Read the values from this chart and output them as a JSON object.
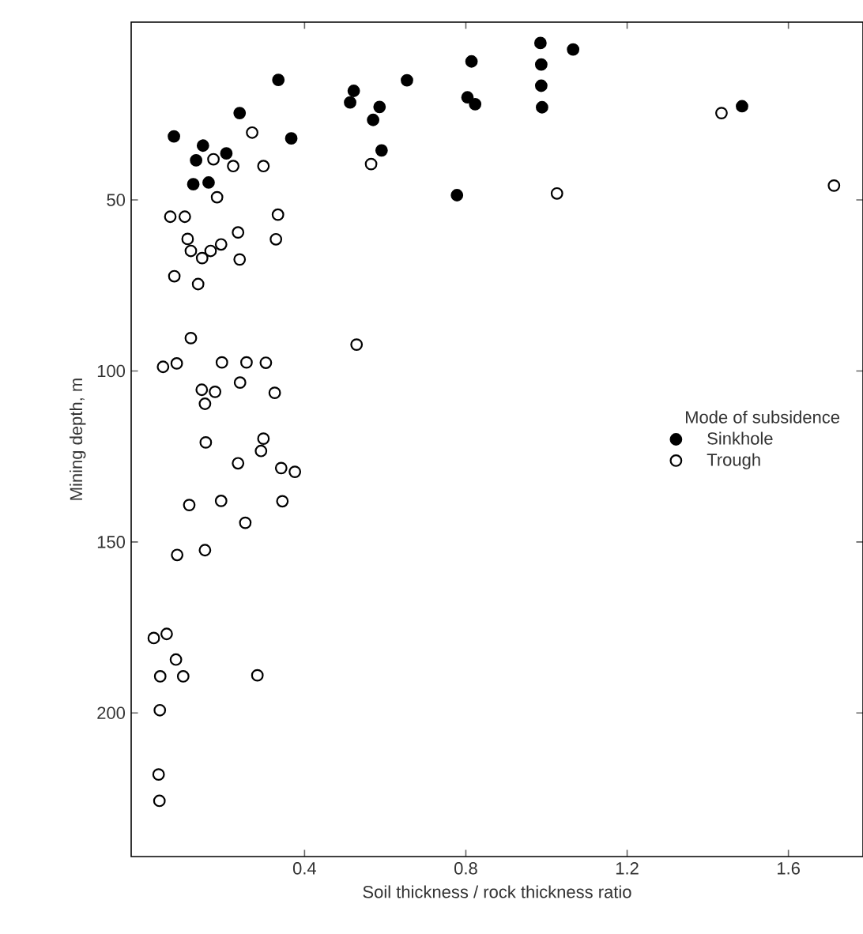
{
  "chart_data": {
    "type": "scatter",
    "xlabel": "Soil thickness / rock thickness ratio",
    "ylabel": "Mining depth, m",
    "legend_title": "Mode of subsidence",
    "xlim": [
      -0.03,
      1.785
    ],
    "ylim": [
      242,
      -2
    ],
    "xticks": [
      0.4,
      0.8,
      1.2,
      1.6
    ],
    "yticks": [
      50,
      100,
      150,
      200
    ],
    "legend": "right",
    "marker": "circle",
    "series": [
      {
        "name": "Sinkhole",
        "color": "#000000",
        "x": [
          0.335,
          0.239,
          0.076,
          0.148,
          0.206,
          0.131,
          0.367,
          0.124,
          0.162,
          0.522,
          0.513,
          0.586,
          0.57,
          0.654,
          0.591,
          0.814,
          0.804,
          0.823,
          0.778,
          0.985,
          1.066,
          0.987,
          0.987,
          0.989,
          1.485
        ],
        "values": [
          14.9,
          24.6,
          31.4,
          34.1,
          36.4,
          38.4,
          32,
          45.4,
          44.9,
          18.1,
          21.5,
          22.8,
          26.6,
          15,
          35.5,
          9.5,
          20,
          22,
          48.6,
          4.1,
          6,
          10.4,
          16.6,
          22.9,
          22.6
        ]
      },
      {
        "name": "Trough",
        "color": "#ffffff",
        "x": [
          0.27,
          0.174,
          0.223,
          0.298,
          0.565,
          0.183,
          0.067,
          0.103,
          0.334,
          0.11,
          0.235,
          0.329,
          0.118,
          0.193,
          0.167,
          0.146,
          0.239,
          0.077,
          0.136,
          1.434,
          1.026,
          1.713,
          0.118,
          0.529,
          0.049,
          0.083,
          0.195,
          0.256,
          0.304,
          0.145,
          0.178,
          0.24,
          0.153,
          0.326,
          0.155,
          0.298,
          0.292,
          0.235,
          0.342,
          0.376,
          0.114,
          0.193,
          0.345,
          0.253,
          0.084,
          0.153,
          0.026,
          0.058,
          0.081,
          0.042,
          0.099,
          0.283,
          0.041,
          0.038,
          0.04
        ],
        "values": [
          30.3,
          38.1,
          40.1,
          40.1,
          39.5,
          49.2,
          54.9,
          54.9,
          54.3,
          61.4,
          59.5,
          61.5,
          64.9,
          63,
          64.9,
          67,
          67.4,
          72.3,
          74.6,
          24.6,
          48.1,
          45.8,
          90.4,
          92.3,
          98.8,
          97.8,
          97.5,
          97.5,
          97.6,
          105.5,
          106.1,
          103.4,
          109.6,
          106.4,
          120.9,
          119.8,
          123.4,
          127,
          128.4,
          129.5,
          139.2,
          138,
          138.1,
          144.4,
          153.8,
          152.4,
          178.1,
          176.9,
          184.4,
          189.3,
          189.3,
          189,
          199.2,
          218,
          225.7
        ]
      }
    ]
  }
}
